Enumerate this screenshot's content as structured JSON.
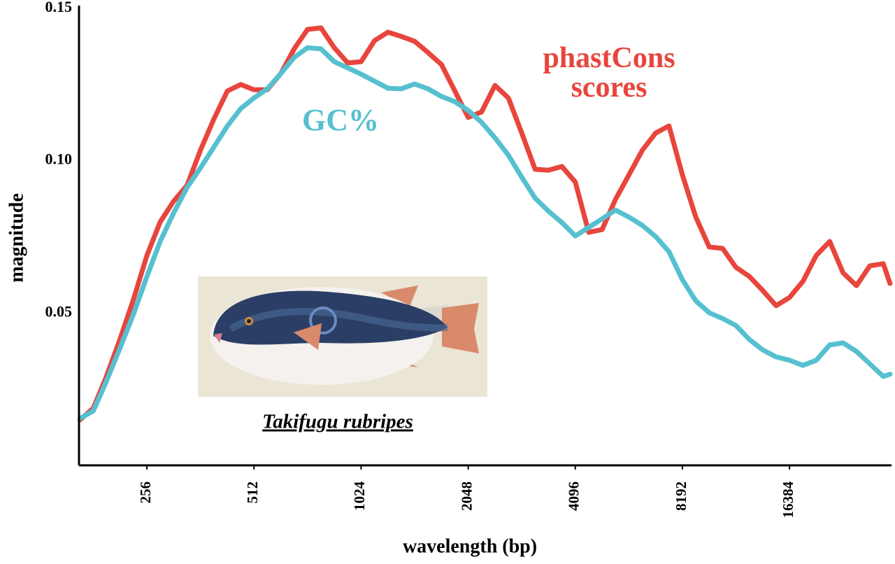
{
  "chart_data": {
    "type": "line",
    "x_label": "wavelength (bp)",
    "y_label": "magnitude",
    "xscale": "log",
    "xlim": [
      165,
      31700
    ],
    "xticks": [
      256,
      512,
      1024,
      2048,
      4096,
      8192,
      16384
    ],
    "ylim": [
      0,
      0.15
    ],
    "yticks": [
      {
        "value": 0.05,
        "label": "0.05"
      },
      {
        "value": 0.1,
        "label": "0.10"
      },
      {
        "value": 0.15,
        "label": "0.15"
      }
    ],
    "grid": true,
    "image_caption": "Takifugu rubripes",
    "x": [
      166,
      181,
      197,
      215,
      235,
      256,
      279,
      304,
      332,
      362,
      395,
      431,
      470,
      512,
      558,
      609,
      664,
      724,
      790,
      861,
      939,
      1024,
      1117,
      1218,
      1328,
      1448,
      1579,
      1722,
      1878,
      2048,
      2233,
      2435,
      2656,
      2896,
      3158,
      3444,
      3756,
      4096,
      4467,
      4871,
      5312,
      5793,
      6317,
      6889,
      7512,
      8192,
      8933,
      9742,
      10624,
      11585,
      12634,
      13777,
      15024,
      16384,
      17867,
      19484,
      21247,
      23170,
      25268,
      27554,
      30048,
      31400
    ],
    "series": [
      {
        "name": "phastCons scores",
        "color": "#e8453c",
        "values": [
          0.0149,
          0.0188,
          0.0292,
          0.0413,
          0.0547,
          0.0689,
          0.0799,
          0.0866,
          0.0919,
          0.1034,
          0.1137,
          0.1229,
          0.125,
          0.1233,
          0.1233,
          0.1286,
          0.1367,
          0.1431,
          0.1436,
          0.1371,
          0.1321,
          0.1325,
          0.1394,
          0.1422,
          0.1408,
          0.1392,
          0.1355,
          0.1316,
          0.1229,
          0.1142,
          0.116,
          0.1247,
          0.1206,
          0.1091,
          0.0972,
          0.0969,
          0.0981,
          0.093,
          0.0765,
          0.0774,
          0.0873,
          0.0953,
          0.1034,
          0.1091,
          0.1114,
          0.0953,
          0.0815,
          0.0717,
          0.0712,
          0.065,
          0.062,
          0.0574,
          0.0524,
          0.0551,
          0.0604,
          0.0689,
          0.0735,
          0.0632,
          0.059,
          0.0655,
          0.0662,
          0.0597
        ]
      },
      {
        "name": "GC%",
        "color": "#56c0d0",
        "values": [
          0.0154,
          0.0179,
          0.0276,
          0.0384,
          0.0498,
          0.062,
          0.0735,
          0.0827,
          0.0912,
          0.0976,
          0.1045,
          0.1114,
          0.1171,
          0.1206,
          0.1236,
          0.1286,
          0.1339,
          0.1371,
          0.1367,
          0.1325,
          0.1305,
          0.1284,
          0.1261,
          0.1238,
          0.1236,
          0.1252,
          0.1236,
          0.1211,
          0.1194,
          0.1165,
          0.1126,
          0.1075,
          0.1018,
          0.0946,
          0.0877,
          0.0834,
          0.0797,
          0.0753,
          0.0781,
          0.0809,
          0.0838,
          0.0815,
          0.0788,
          0.0751,
          0.0701,
          0.0609,
          0.054,
          0.0501,
          0.0482,
          0.0459,
          0.0413,
          0.0379,
          0.0356,
          0.0345,
          0.0328,
          0.0345,
          0.0395,
          0.0402,
          0.0374,
          0.0333,
          0.0292,
          0.0299
        ]
      }
    ]
  }
}
